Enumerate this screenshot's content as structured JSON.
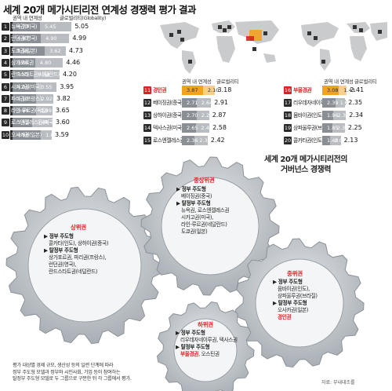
{
  "header": {
    "title": "세계 20개 메가시티리전 연계성 경쟁력 평가 결과",
    "legend_intra": "권역 내 연계성",
    "legend_global": "글로벌리티(Globality)",
    "legend_intra_short": "권역 내 연계성",
    "legend_global_short": "글로벌리티"
  },
  "colors": {
    "intra": "#8a8f95",
    "global": "#b9bdc1",
    "intra_hl": "#f1a21e",
    "global_hl": "#f8cf8a",
    "accent": "#d22222"
  },
  "chart_data": {
    "type": "bar",
    "stacked": true,
    "orientation": "horizontal",
    "title": "세계 20개 메가시티리전 연계성 경쟁력 평가 결과",
    "series_names": [
      "권역 내 연계성",
      "글로벌리티(Globality)"
    ],
    "regions": [
      {
        "rank": "1",
        "name": "뉴욕권(미국)",
        "intra": "4.73",
        "global": "5.45",
        "total": "5.05"
      },
      {
        "rank": "2",
        "name": "런던권(영국)",
        "intra": "4.87",
        "global": "4.90",
        "total": "4.99"
      },
      {
        "rank": "3",
        "name": "도쿄권(일본)",
        "intra": "5.56",
        "global": "3.62",
        "total": "4.73"
      },
      {
        "rank": "4",
        "name": "상가포르권",
        "intra": "3.88",
        "global": "4.80",
        "total": "4.46"
      },
      {
        "rank": "5",
        "name": "란드스타트권(네덜란드)",
        "intra": "3.63",
        "global": "4.48",
        "total": "4.20"
      },
      {
        "rank": "6",
        "name": "시카고권(미국)",
        "intra": "4.06",
        "global": "3.55",
        "total": "3.95"
      },
      {
        "rank": "7",
        "name": "파리권(프랑스)",
        "intra": "4.10",
        "global": "2.92",
        "total": "3.82"
      },
      {
        "rank": "8",
        "name": "라인-루르권(독일)",
        "intra": "3.99",
        "global": "2.89",
        "total": "3.65"
      },
      {
        "rank": "9",
        "name": "로스앤젤레스권(미국)",
        "intra": "3.41",
        "global": "3.48",
        "total": "3.60"
      },
      {
        "rank": "10",
        "name": "오사카권(일본)",
        "intra": "4.88",
        "global": "1.87",
        "total": "3.59"
      },
      {
        "rank": "11",
        "name": "경인권",
        "intra": "3.87",
        "global": "2.10",
        "total": "3.18",
        "highlight": true
      },
      {
        "rank": "12",
        "name": "베이징권(중국)",
        "intra": "2.71",
        "global": "2.64",
        "total": "2.91"
      },
      {
        "rank": "13",
        "name": "상하이권(중국)",
        "intra": "2.70",
        "global": "2.29",
        "total": "2.87"
      },
      {
        "rank": "14",
        "name": "텍사스권(미국)",
        "intra": "2.65",
        "global": "2.40",
        "total": "2.58"
      },
      {
        "rank": "15",
        "name": "로스엔젤레스권(미국)",
        "intra": "2.36",
        "global": "2.36",
        "total": "2.42"
      },
      {
        "rank": "16",
        "name": "부울경권",
        "intra": "3.08",
        "global": "1.43",
        "total": "2.41",
        "highlight": true
      },
      {
        "rank": "17",
        "name": "리우데자네이루권(브라질)",
        "intra": "2.39",
        "global": "1.82",
        "total": "2.35"
      },
      {
        "rank": "18",
        "name": "뭄바이권(인도)",
        "intra": "1.96",
        "global": "2.39",
        "total": "2.34"
      },
      {
        "rank": "19",
        "name": "상파울루권(브라질)",
        "intra": "1.85",
        "global": "2.31",
        "total": "2.25"
      },
      {
        "rank": "20",
        "name": "콜카타권(인도)",
        "intra": "1.40",
        "global": "2.00",
        "total": "2.13"
      }
    ]
  },
  "governance": {
    "title_line1": "세계 20개 메가시티리전의",
    "title_line2": "거버넌스 경쟁력",
    "upper": {
      "title": "상위권",
      "lines": [
        "▶ 정부 주도형",
        "콜카타(인도), 상하이권(중국)",
        "▶ 탈정부 주도형",
        "상가포르권, 파리권(프랑스),",
        "런던권(영국),",
        "란드스타트권(네덜란드)"
      ]
    },
    "middle_upper": {
      "title": "중상위권",
      "lines": [
        "▶ 정부 주도형",
        "베이징권(중국)",
        "▶ 탈정부 주도형",
        "뉴욕권, 로스엔젤레스권",
        "시카고권(미국),",
        "라인-루르권(네덜란드)",
        "도쿄권(일본)"
      ]
    },
    "middle": {
      "title": "중위권",
      "lines": [
        "▶ 정부 주도형",
        "뭄바이권(인도),",
        "상파울루권(브라질)",
        "▶ 탈정부 주도형",
        "오사카권(일본)"
      ],
      "extra": "경인권"
    },
    "lower": {
      "title": "하위권",
      "lines": [
        "▶ 정부 주도형",
        "리우데자네이루권, 텍사스권",
        "▶ 탈정부 주도형"
      ],
      "extra": "부울경권",
      "extra_rest": ", 오스틴권"
    }
  },
  "note": [
    "평가 대상별 경제 규모, 생산성 등의 일련 단계에 따라",
    "정부 주도형 모델과 정부와 시민사회, 기업 등이 참여하는",
    "탈정부 주도형 모델로 두 그룹으로 구분한 뒤 각 그룹에서 평가."
  ],
  "source": "자료: 부내대조를"
}
